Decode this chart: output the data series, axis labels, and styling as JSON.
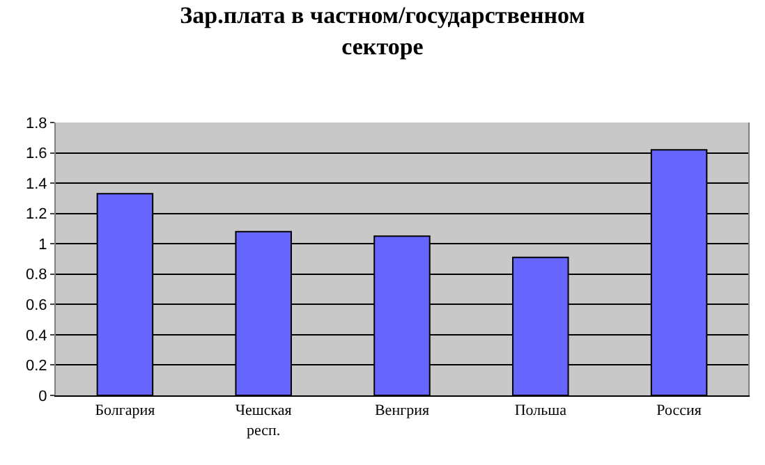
{
  "chart_data": {
    "type": "bar",
    "title": "Зар.плата в частном/государственном секторе",
    "categories": [
      "Болгария",
      "Чешская респ.",
      "Венгрия",
      "Польша",
      "Россия"
    ],
    "values": [
      1.33,
      1.08,
      1.05,
      0.91,
      1.62
    ],
    "color": "#6666ff",
    "ylim": [
      0,
      1.8
    ],
    "yticks": [
      0,
      0.2,
      0.4,
      0.6,
      0.8,
      1,
      1.2,
      1.4,
      1.6,
      1.8
    ],
    "grid": "y"
  }
}
